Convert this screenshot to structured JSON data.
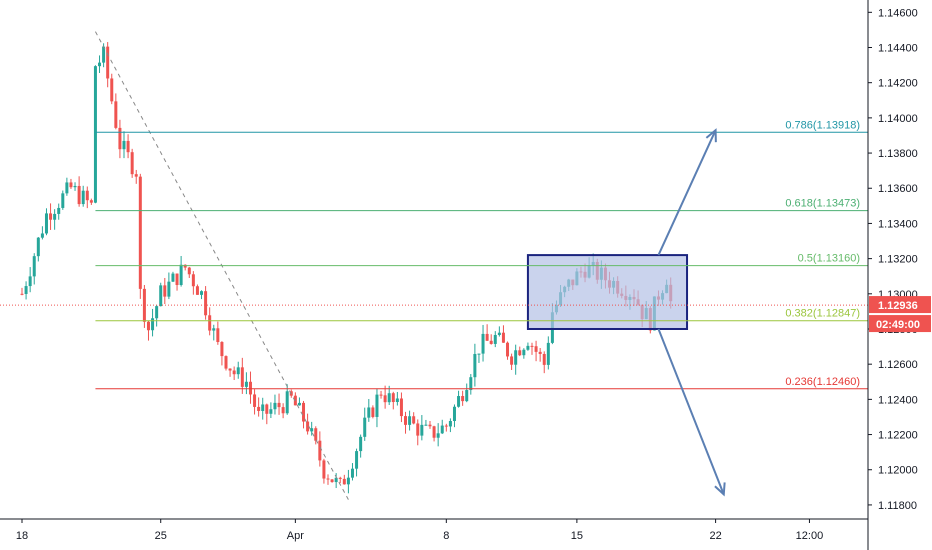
{
  "colors": {
    "bull": "#26a69a",
    "bear": "#ef5350",
    "fib_0786": "#2196a6",
    "fib_0618": "#4caf72",
    "fib_05": "#66bb6a",
    "fib_0382": "#9bc53d",
    "fib_0236": "#e53935",
    "box_fill": "#b3c1e6",
    "box_stroke": "#1a237e",
    "arrow": "#5b7fb3",
    "current_price_bg": "#ef5350",
    "countdown_bg": "#ef5350"
  },
  "chart_data": {
    "type": "candlestick",
    "instrument_scale": "price",
    "y_ticks": [
      "1.14600",
      "1.14400",
      "1.14200",
      "1.14000",
      "1.13800",
      "1.13600",
      "1.13400",
      "1.13200",
      "1.13000",
      "1.12800",
      "1.12600",
      "1.12400",
      "1.12200",
      "1.12000",
      "1.11800"
    ],
    "y_tick_values": [
      1.146,
      1.144,
      1.142,
      1.14,
      1.138,
      1.136,
      1.134,
      1.132,
      1.13,
      1.128,
      1.126,
      1.124,
      1.122,
      1.12,
      1.118
    ],
    "ylim": [
      1.1172,
      1.1467
    ],
    "x_ticks": [
      "18",
      "25",
      "Apr",
      "8",
      "15",
      "22",
      "12:00"
    ],
    "x_tick_index": [
      0,
      34,
      67,
      104,
      136,
      170,
      193
    ],
    "fib_levels": [
      {
        "ratio": "0.786",
        "price": 1.13918,
        "label": "0.786(1.13918)",
        "color_key": "fib_0786"
      },
      {
        "ratio": "0.618",
        "price": 1.13473,
        "label": "0.618(1.13473)",
        "color_key": "fib_0618"
      },
      {
        "ratio": "0.5",
        "price": 1.1316,
        "label": "0.5(1.13160)",
        "color_key": "fib_05"
      },
      {
        "ratio": "0.382",
        "price": 1.12847,
        "label": "0.382(1.12847)",
        "color_key": "fib_0382"
      },
      {
        "ratio": "0.236",
        "price": 1.1246,
        "label": "0.236(1.12460)",
        "color_key": "fib_0236"
      }
    ],
    "current_price": 1.12936,
    "current_price_label": "1.12936",
    "countdown_label": "02:49:00",
    "trendline": {
      "from": {
        "i": 18,
        "p": 1.1449
      },
      "to": {
        "i": 80,
        "p": 1.1183
      }
    },
    "range_box": {
      "i_from": 124,
      "i_to": 163,
      "p_top": 1.1322,
      "p_bottom": 1.128
    },
    "arrows": [
      {
        "from": {
          "i": 156,
          "p": 1.1322
        },
        "to": {
          "i": 170,
          "p": 1.1393
        }
      },
      {
        "from": {
          "i": 156,
          "p": 1.128
        },
        "to": {
          "i": 172,
          "p": 1.1186
        }
      }
    ],
    "candles": []
  }
}
